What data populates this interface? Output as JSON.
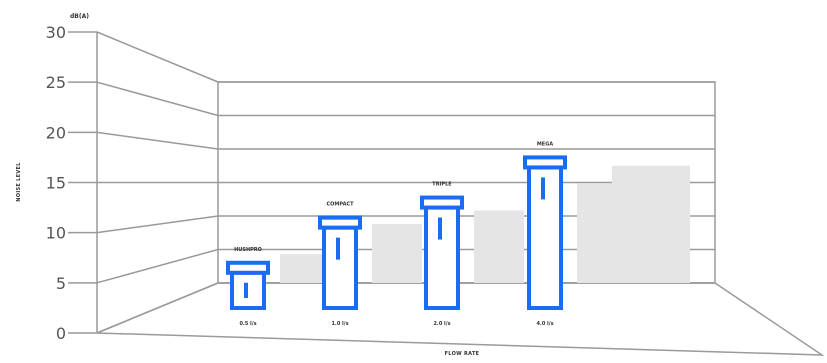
{
  "chart_data": {
    "type": "bar",
    "title": "",
    "xlabel": "FLOW RATE",
    "ylabel": "NOISE LEVEL",
    "y_unit": "dB(A)",
    "ylim": [
      0,
      30
    ],
    "yticks": [
      "0",
      "5",
      "10",
      "15",
      "20",
      "25",
      "30"
    ],
    "categories": [
      "0.5 l/s",
      "1.0 l/s",
      "2.0 l/s",
      "4.0 l/s"
    ],
    "series": [
      {
        "values": [
          7,
          11.5,
          13.5,
          17.5
        ]
      }
    ],
    "top_labels": [
      "HUSHPRO",
      "COMPACT",
      "TRIPLE",
      "MEGA"
    ],
    "grid": true,
    "bar_color": "#1a6cf0",
    "ghost_color": "#e5e5e5"
  }
}
